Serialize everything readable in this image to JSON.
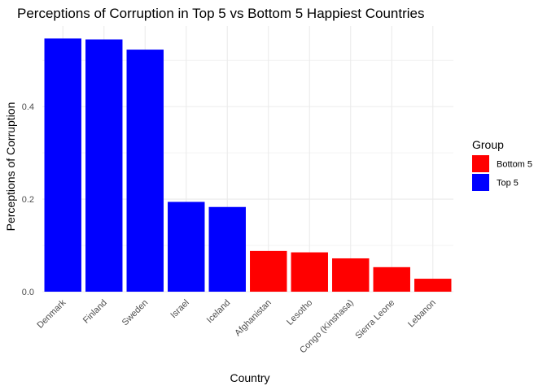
{
  "chart_data": {
    "type": "bar",
    "title": "Perceptions of Corruption in Top 5 vs Bottom 5 Happiest Countries",
    "xlabel": "Country",
    "ylabel": "Perceptions of Corruption",
    "categories": [
      "Denmark",
      "Finland",
      "Sweden",
      "Israel",
      "Iceland",
      "Afghanistan",
      "Lesotho",
      "Congo (Kinshasa)",
      "Sierra Leone",
      "Lebanon"
    ],
    "values": [
      0.547,
      0.545,
      0.523,
      0.194,
      0.183,
      0.088,
      0.085,
      0.072,
      0.053,
      0.028
    ],
    "groups": [
      "Top 5",
      "Top 5",
      "Top 5",
      "Top 5",
      "Top 5",
      "Bottom 5",
      "Bottom 5",
      "Bottom 5",
      "Bottom 5",
      "Bottom 5"
    ],
    "yticks": [
      0.0,
      0.2,
      0.4
    ],
    "ytick_labels": [
      "0.0",
      "0.2",
      "0.4"
    ],
    "ylim": [
      0,
      0.574
    ],
    "grid": true,
    "legend": {
      "title": "Group",
      "position": "right",
      "entries": [
        {
          "label": "Bottom 5",
          "color": "#ff0000"
        },
        {
          "label": "Top 5",
          "color": "#0000ff"
        }
      ]
    },
    "colors": {
      "Top 5": "#0000ff",
      "Bottom 5": "#ff0000"
    }
  }
}
